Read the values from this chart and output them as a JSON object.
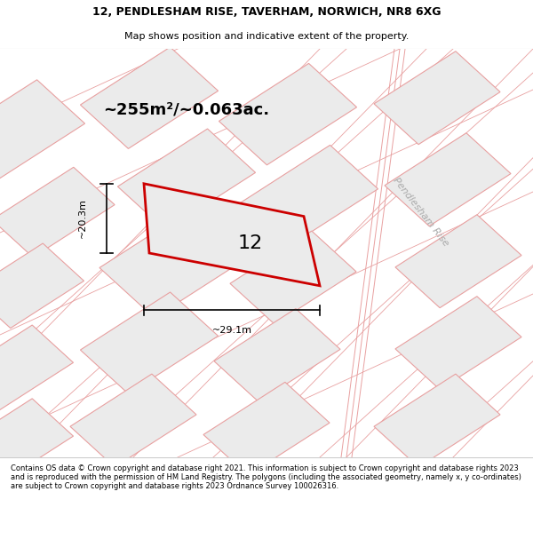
{
  "title_line1": "12, PENDLESHAM RISE, TAVERHAM, NORWICH, NR8 6XG",
  "title_line2": "Map shows position and indicative extent of the property.",
  "area_text": "~255m²/~0.063ac.",
  "label_number": "12",
  "dim_width": "~29.1m",
  "dim_height": "~20.3m",
  "street_label": "Pendlesham Rise",
  "footer_text": "Contains OS data © Crown copyright and database right 2021. This information is subject to Crown copyright and database rights 2023 and is reproduced with the permission of HM Land Registry. The polygons (including the associated geometry, namely x, y co-ordinates) are subject to Crown copyright and database rights 2023 Ordnance Survey 100026316.",
  "bg_color": "#e0dede",
  "plot_fill_color": "#ebebeb",
  "plot_outline_color": "#e8a0a0",
  "main_plot_color": "#cc0000",
  "road_color": "#d4d4d4",
  "title_bg_color": "#ffffff",
  "footer_bg_color": "#ffffff",
  "text_color": "#000000",
  "street_label_color": "#aaaaaa"
}
